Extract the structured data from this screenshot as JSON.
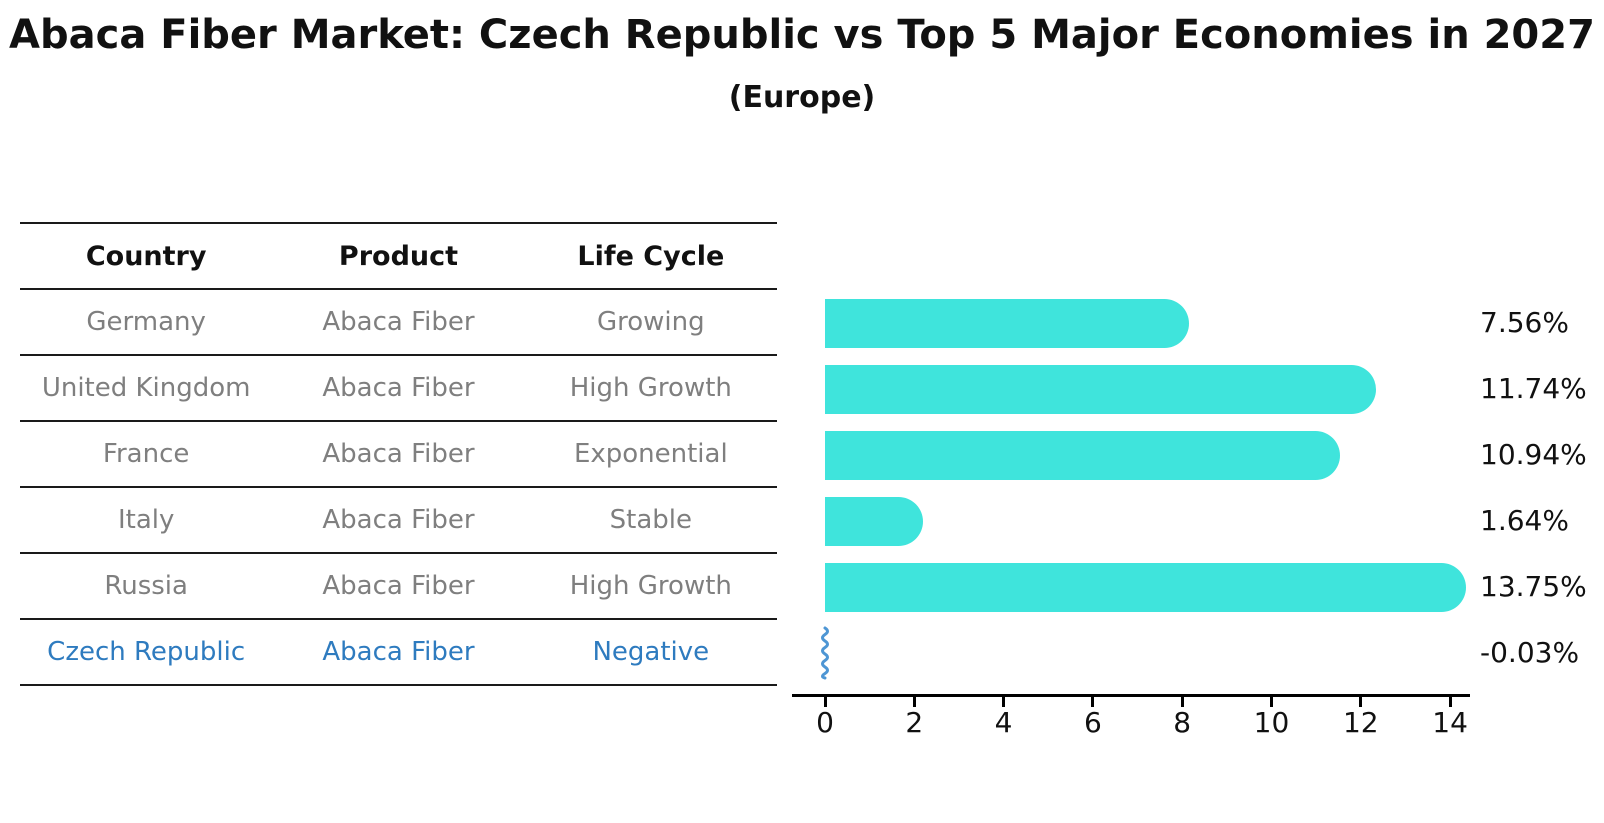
{
  "title": "Abaca Fiber Market: Czech Republic vs Top 5 Major Economies in 2027",
  "subtitle": "(Europe)",
  "table": {
    "headers": [
      "Country",
      "Product",
      "Life Cycle"
    ],
    "rows": [
      {
        "country": "Germany",
        "product": "Abaca Fiber",
        "life_cycle": "Growing"
      },
      {
        "country": "United Kingdom",
        "product": "Abaca Fiber",
        "life_cycle": "High Growth"
      },
      {
        "country": "France",
        "product": "Abaca Fiber",
        "life_cycle": "Exponential"
      },
      {
        "country": "Italy",
        "product": "Abaca Fiber",
        "life_cycle": "Stable"
      },
      {
        "country": "Russia",
        "product": "Abaca Fiber",
        "life_cycle": "High Growth"
      },
      {
        "country": "Czech Republic",
        "product": "Abaca Fiber",
        "life_cycle": "Negative"
      }
    ],
    "highlighted_row": "Czech Republic"
  },
  "chart_data": {
    "type": "bar",
    "orientation": "horizontal",
    "title": "Abaca Fiber Market: Czech Republic vs Top 5 Major Economies in 2027",
    "subtitle": "(Europe)",
    "categories": [
      "Germany",
      "United Kingdom",
      "France",
      "Italy",
      "Russia",
      "Czech Republic"
    ],
    "values": [
      7.56,
      11.74,
      10.94,
      1.64,
      13.75,
      -0.03
    ],
    "value_labels": [
      "7.56%",
      "11.74%",
      "10.94%",
      "1.64%",
      "13.75%",
      "-0.03%"
    ],
    "unit": "percent",
    "xticks": [
      0,
      2,
      4,
      6,
      8,
      10,
      12,
      14
    ],
    "xlim": [
      0,
      14.4
    ],
    "grid": false,
    "legend": false,
    "bar_color": "#3fe4dc",
    "negative_marker_color": "#4e96d4",
    "highlight_text_color": "#2e7bbf",
    "row_text_color": "#7f7f7f"
  }
}
